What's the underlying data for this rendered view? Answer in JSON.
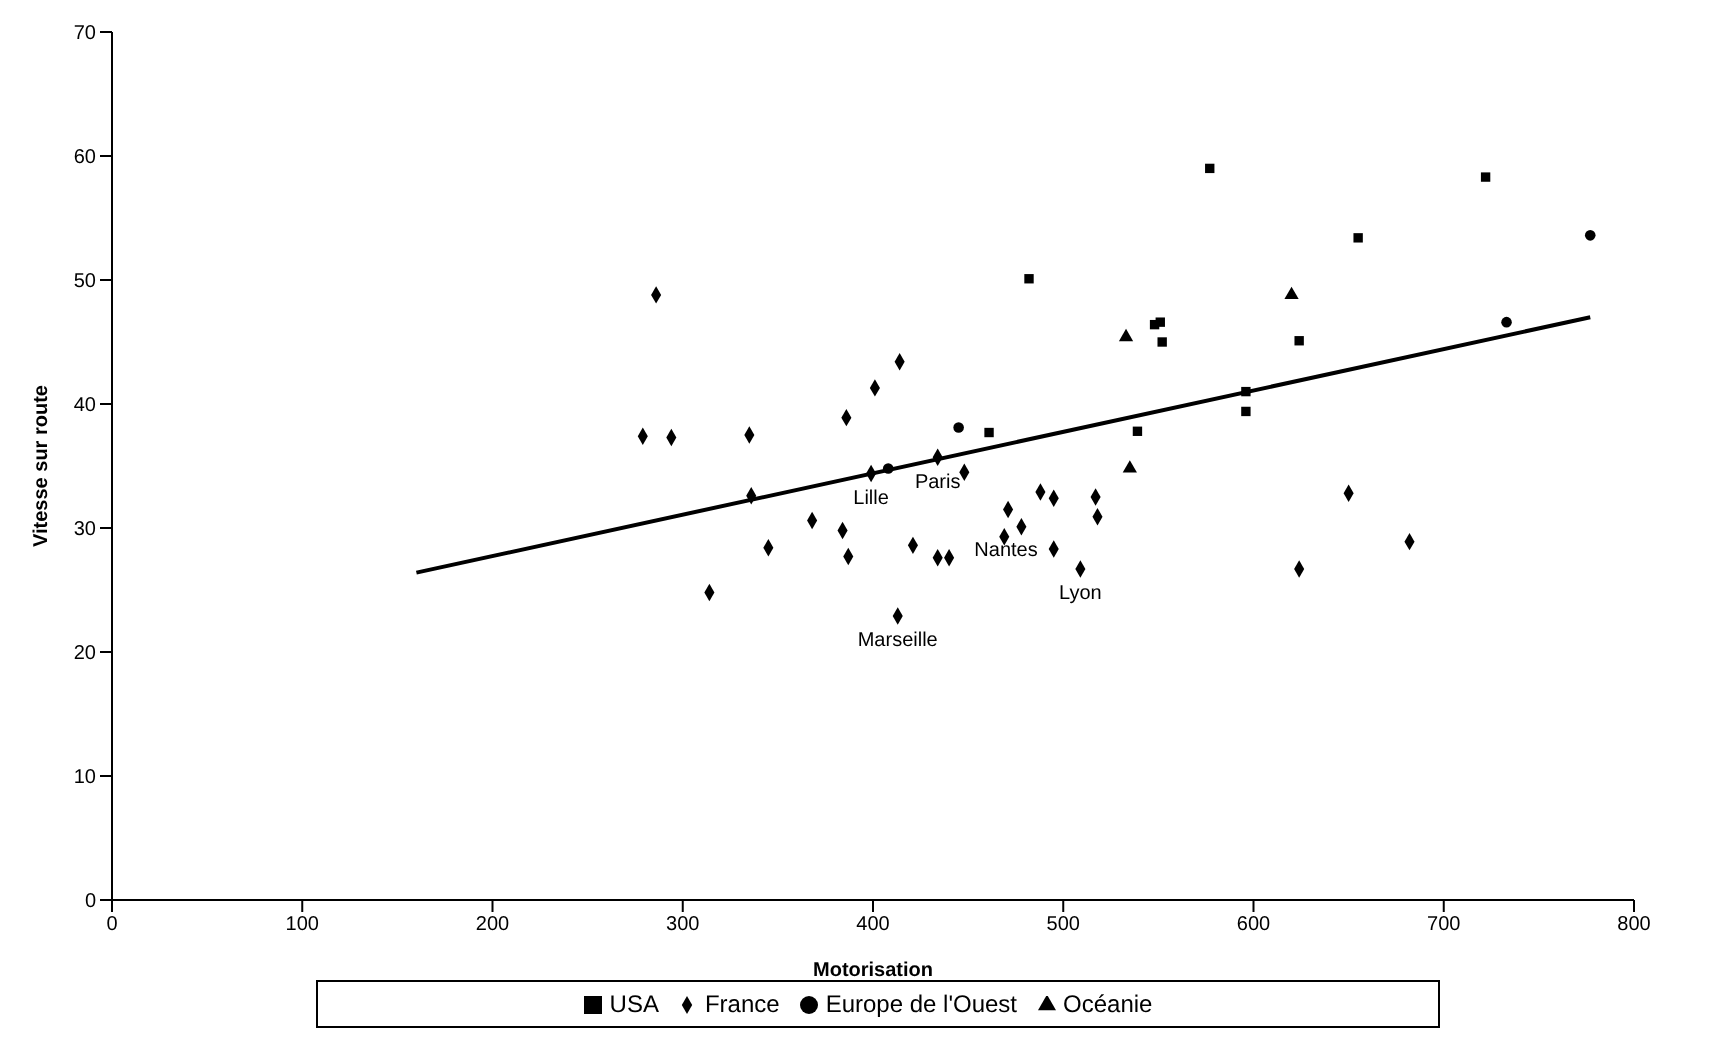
{
  "chart_data": {
    "type": "scatter",
    "xlabel": "Motorisation",
    "ylabel": "Vitesse sur route",
    "xlim": [
      0,
      800
    ],
    "xticks": [
      0,
      100,
      200,
      300,
      400,
      500,
      600,
      700,
      800
    ],
    "ylim": [
      0,
      70
    ],
    "yticks": [
      0,
      10,
      20,
      30,
      40,
      50,
      60,
      70
    ],
    "grid": false,
    "legend": "bottom",
    "annotations": [
      {
        "text": "Lille",
        "x": 399,
        "y": 34.4
      },
      {
        "text": "Paris",
        "x": 434,
        "y": 35.7
      },
      {
        "text": "Nantes",
        "x": 495,
        "y": 28.3
      },
      {
        "text": "Lyon",
        "x": 509,
        "y": 26.7
      },
      {
        "text": "Marseille",
        "x": 413,
        "y": 22.9
      }
    ],
    "series": [
      {
        "name": "USA",
        "color": "#000000",
        "marker": "square",
        "x": [
          482,
          577,
          722,
          655,
          548,
          551,
          552,
          624,
          596,
          596,
          539,
          461
        ],
        "values": [
          50.1,
          59.0,
          58.3,
          53.4,
          46.4,
          46.6,
          45.0,
          45.1,
          41.0,
          39.4,
          37.8,
          37.7
        ]
      },
      {
        "name": "France",
        "color": "#000000",
        "marker": "diamond",
        "x": [
          286,
          279,
          294,
          335,
          414,
          401,
          386,
          336,
          368,
          384,
          345,
          387,
          421,
          434,
          440,
          314,
          413,
          399,
          434,
          448,
          471,
          478,
          469,
          488,
          495,
          517,
          518,
          495,
          509,
          650,
          682,
          624
        ],
        "values": [
          48.8,
          37.4,
          37.3,
          37.5,
          43.4,
          41.3,
          38.9,
          32.6,
          30.6,
          29.8,
          28.4,
          27.7,
          28.6,
          27.6,
          27.6,
          24.8,
          22.9,
          34.4,
          35.7,
          34.5,
          31.5,
          30.1,
          29.3,
          32.9,
          32.4,
          32.5,
          30.9,
          28.3,
          26.7,
          32.8,
          28.9,
          26.7
        ]
      },
      {
        "name": "Europe de l'Ouest",
        "color": "#000000",
        "marker": "circle",
        "x": [
          445,
          408,
          777,
          733
        ],
        "values": [
          38.1,
          34.8,
          53.6,
          46.6
        ]
      },
      {
        "name": "Océanie",
        "color": "#000000",
        "marker": "triangle",
        "x": [
          620,
          533,
          535
        ],
        "values": [
          48.8,
          45.4,
          34.8
        ]
      },
      {
        "type": "line",
        "color": "#000000",
        "x": [
          160,
          777
        ],
        "values": [
          26.4,
          47.0
        ]
      }
    ]
  }
}
